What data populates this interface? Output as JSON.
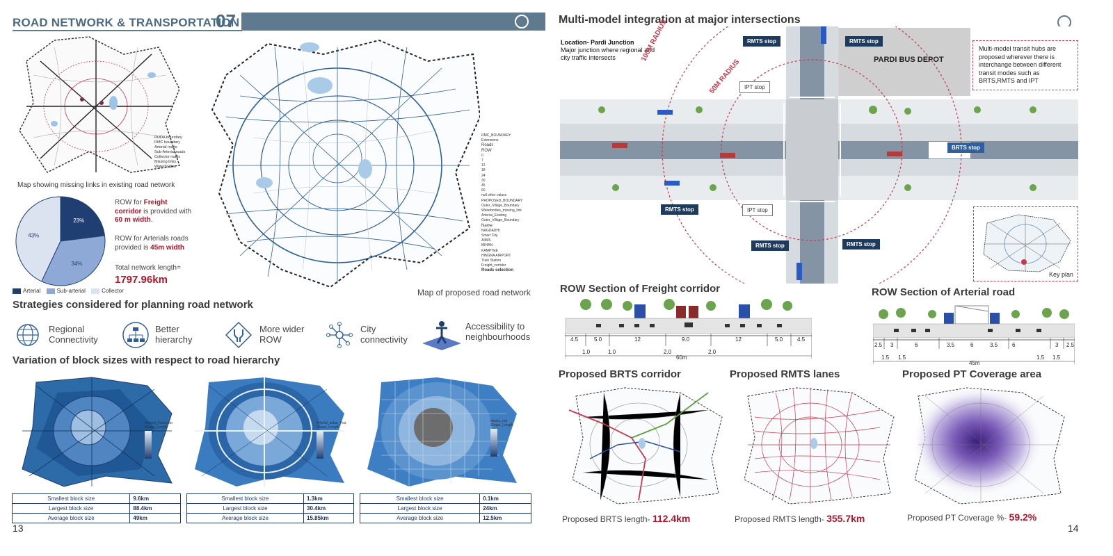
{
  "left_page": {
    "header_title": "ROAD NETWORK & TRANSPORTATION",
    "header_number": "07",
    "page_number": "13",
    "missing_links_caption": "Map showing missing links in existing road network",
    "missing_links_legend": [
      "RUDA boundary",
      "RMC boundary",
      "Arterial roads",
      "Sub-Arterial roads",
      "Collector roads",
      "Missing links",
      "Waterbodies"
    ],
    "pie": {
      "slices": [
        {
          "label": "Arterial",
          "percent_label": "23%",
          "value": 23,
          "color": "#1f3f73"
        },
        {
          "label": "Sub-arterial",
          "percent_label": "34%",
          "value": 34,
          "color": "#8fa9d6"
        },
        {
          "label": "Collector",
          "percent_label": "43%",
          "value": 43,
          "color": "#dbe3f1"
        }
      ]
    },
    "row_freight": {
      "pre": "ROW for ",
      "highlight": "Freight corridor",
      "mid": " is provided with ",
      "width": "60 m width",
      "post": "."
    },
    "row_arterial": {
      "pre": "ROW for Arterials roads provided is ",
      "width": "45m width"
    },
    "total_length_label": "Total network length=",
    "total_length_value": "1797.96km",
    "proposed_map_caption": "Map of proposed road network",
    "proposed_legend_title_roads": "Roads",
    "proposed_legend_row": "ROW",
    "proposed_legend_name": "Name",
    "proposed_legend_items": [
      "RMC_BOUNDARY",
      "Extensions",
      "0",
      "7",
      "12",
      "18",
      "24",
      "30",
      "45",
      "60",
      "null other values",
      "PROPOSED_BOUNDARY",
      "Outer_Village_Boundary",
      "Waterbodies_missing_link",
      "Arterial_Existing",
      "Outer_Village_Boundary"
    ],
    "proposed_legend_names": [
      "NAGDADHI",
      "Smart City",
      "AIIMS",
      "MIHAN",
      "KAMPTEE",
      "HINGNA AIRPORT",
      "Train Station",
      "Freight_corridor"
    ],
    "roads_selection": "Roads selection",
    "strategies_title": "Strategies considered for planning road network",
    "strategies": [
      {
        "icon": "globe-icon",
        "label": "Regional Connectivity"
      },
      {
        "icon": "hierarchy-icon",
        "label": "Better hierarchy"
      },
      {
        "icon": "road-split-icon",
        "label": "More wider ROW"
      },
      {
        "icon": "network-icon",
        "label": "City connectivity"
      },
      {
        "icon": "accessibility-icon",
        "label": "Accessibility to neighbourhoods"
      }
    ],
    "block_title": "Variation of block sizes with respect to road hierarchy",
    "block_tables": [
      {
        "legend_title": "Arterial_Featureto",
        "legend_sub": "Shape_Length",
        "rows": [
          [
            "Smallest block size",
            "9.6km"
          ],
          [
            "Largest block size",
            "88.4km"
          ],
          [
            "Average block size",
            "49km"
          ]
        ]
      },
      {
        "legend_title": "Arterial_subar_Fea",
        "legend_sub": "Shape_Length",
        "rows": [
          [
            "Smallest block size",
            "1.3km"
          ],
          [
            "Largest block size",
            "30.4km"
          ],
          [
            "Average block size",
            "15.85km"
          ]
        ]
      },
      {
        "legend_title": "blocks_org",
        "legend_sub": "Shape_Length",
        "rows": [
          [
            "Smallest block size",
            "0.1km"
          ],
          [
            "Largest block size",
            "24km"
          ],
          [
            "Average block size",
            "12.5km"
          ]
        ]
      }
    ]
  },
  "right_page": {
    "title": "Multi-model integration at major intersections",
    "page_number": "14",
    "location_label": "Location- Pardi Junction",
    "location_desc": "Major junction where regional and city traffic intersects",
    "radius_100": "100M RADIUS",
    "radius_50": "50M RADIUS",
    "depot_label": "PARDI BUS DEPOT",
    "callout_text": "Multi-model transit hubs are proposed wherever there is interchange between different transit modes such as BRTS,RMTS and IPT",
    "tags": {
      "rmts_1": "RMTS stop",
      "rmts_2": "RMTS stop",
      "rmts_3": "RMTS stop",
      "rmts_4": "RMTS stop",
      "rmts_5": "RMTS stop",
      "ipt_1": "IPT stop",
      "ipt_2": "IPT stop",
      "brts": "BRTS stop"
    },
    "key_plan": "Key plan",
    "freight_section_title": "ROW Section of Freight corridor",
    "freight_dims": [
      "4.5",
      "5.0",
      "12",
      "9.0",
      "12",
      "5.0",
      "4.5"
    ],
    "freight_sub_dims": [
      "1.0",
      "1.0",
      "2.0",
      "2.0"
    ],
    "freight_total": "60m",
    "arterial_section_title": "ROW Section of Arterial road",
    "arterial_dims": [
      "2.5",
      "3",
      "6",
      "3.5",
      "6",
      "3.5",
      "6",
      "3",
      "2.5"
    ],
    "arterial_sub_dims": [
      "1.5",
      "1.5",
      "1.5",
      "1.5"
    ],
    "arterial_total": "45m",
    "brts_title": "Proposed BRTS corridor",
    "rmts_title": "Proposed RMTS lanes",
    "pt_title": "Proposed PT Coverage area",
    "brts_length_label": "Proposed BRTS length-",
    "brts_length_value": "112.4km",
    "rmts_length_label": "Proposed RMTS length-",
    "rmts_length_value": "355.7km",
    "pt_coverage_label": "Proposed PT Coverage %-",
    "pt_coverage_value": "59.2%"
  }
}
